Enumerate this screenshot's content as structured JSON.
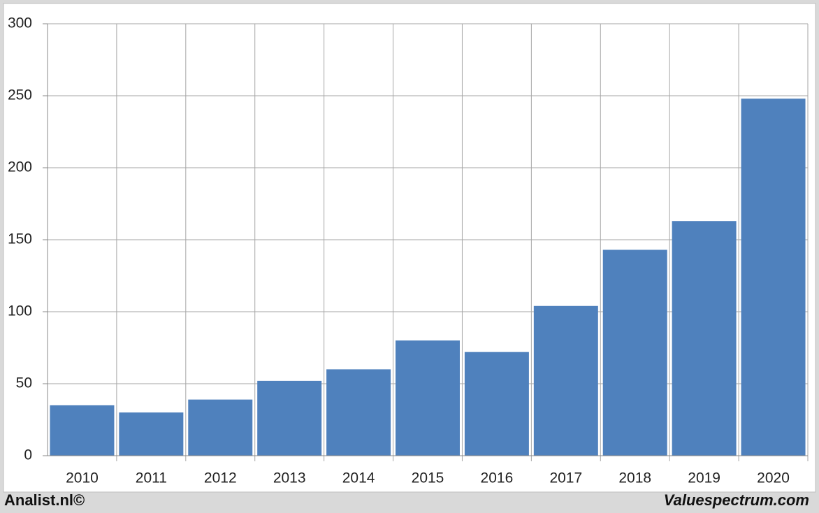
{
  "chart_data": {
    "type": "bar",
    "categories": [
      "2010",
      "2011",
      "2012",
      "2013",
      "2014",
      "2015",
      "2016",
      "2017",
      "2018",
      "2019",
      "2020"
    ],
    "values": [
      35,
      30,
      39,
      52,
      60,
      80,
      72,
      104,
      143,
      163,
      248
    ],
    "color": "#4f81bd",
    "ylim": [
      0,
      300
    ],
    "yticks": [
      0,
      50,
      100,
      150,
      200,
      250,
      300
    ],
    "grid": true
  },
  "footer": {
    "left": "Analist.nl©",
    "right": "Valuespectrum.com"
  }
}
